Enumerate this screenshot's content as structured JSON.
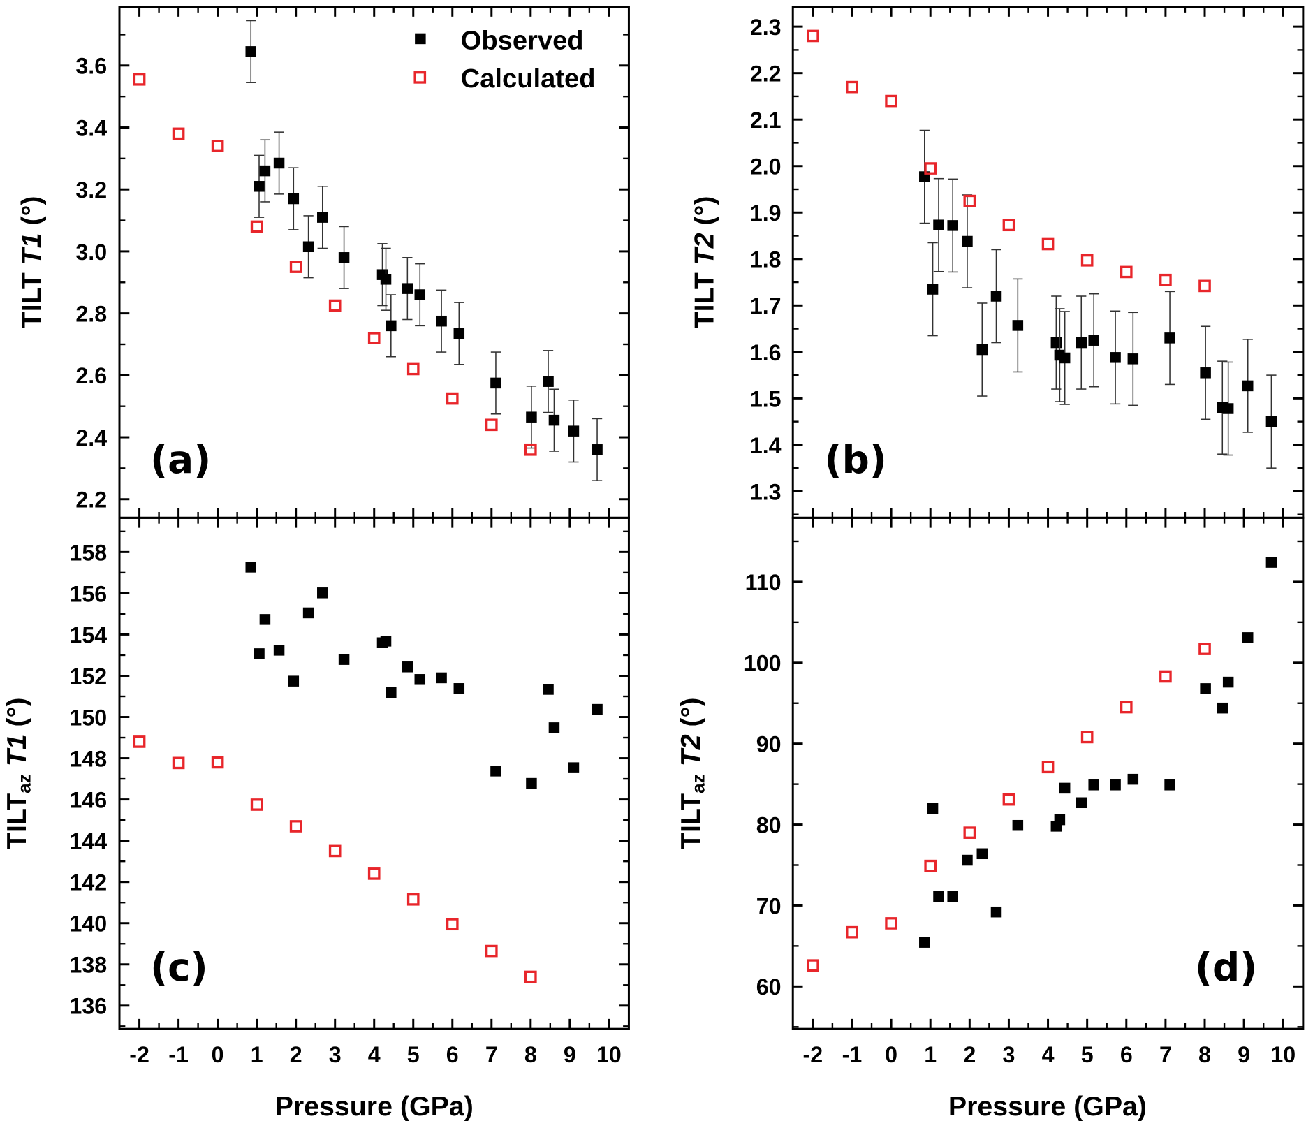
{
  "colors": {
    "observed": "#000000",
    "calculated": "#e8262b",
    "axis": "#000000"
  },
  "legend": {
    "placement": "top-right",
    "entries": [
      "Observed",
      "Calculated"
    ]
  },
  "shared_xlabel": "Pressure (GPa)",
  "chart_data": [
    {
      "type": "scatter",
      "panel": "(a)",
      "ylabel": {
        "prefix": "TILT ",
        "sub": "",
        "var": "T1",
        "unit": " (°)"
      },
      "xlim": [
        -2.51,
        10.51
      ],
      "ylim": [
        2.14,
        3.79
      ],
      "xticks": [
        -2,
        -1,
        0,
        1,
        2,
        3,
        4,
        5,
        6,
        7,
        8,
        9,
        10
      ],
      "yticks": [
        "2.2",
        "2.4",
        "2.6",
        "2.8",
        "3.0",
        "3.2",
        "3.4",
        "3.6"
      ],
      "show_xticklabels": false,
      "show_legend": true,
      "series": [
        {
          "name": "Observed",
          "marker": "filled-square",
          "x": [
            0.85,
            1.06,
            1.21,
            1.57,
            1.94,
            2.32,
            2.68,
            3.23,
            4.21,
            4.3,
            4.43,
            4.85,
            5.17,
            5.72,
            6.17,
            7.11,
            8.02,
            8.45,
            8.6,
            9.1,
            9.7
          ],
          "y": [
            3.645,
            3.21,
            3.26,
            3.285,
            3.17,
            3.015,
            3.11,
            2.98,
            2.925,
            2.91,
            2.76,
            2.88,
            2.86,
            2.775,
            2.735,
            2.575,
            2.465,
            2.58,
            2.455,
            2.42,
            2.36
          ],
          "yerr": 0.1
        },
        {
          "name": "Calculated",
          "marker": "open-square",
          "x": [
            -2,
            -1,
            0,
            1,
            2,
            3,
            4,
            5,
            6,
            7,
            8
          ],
          "y": [
            3.555,
            3.38,
            3.34,
            3.08,
            2.95,
            2.825,
            2.72,
            2.62,
            2.525,
            2.44,
            2.36
          ]
        }
      ]
    },
    {
      "type": "scatter",
      "panel": "(b)",
      "ylabel": {
        "prefix": "TILT ",
        "sub": "",
        "var": "T2",
        "unit": " (°)"
      },
      "xlim": [
        -2.51,
        10.51
      ],
      "ylim": [
        1.243,
        2.343
      ],
      "xticks": [
        -2,
        -1,
        0,
        1,
        2,
        3,
        4,
        5,
        6,
        7,
        8,
        9,
        10
      ],
      "yticks": [
        "1.3",
        "1.4",
        "1.5",
        "1.6",
        "1.7",
        "1.8",
        "1.9",
        "2.0",
        "2.1",
        "2.2",
        "2.3"
      ],
      "show_xticklabels": false,
      "show_legend": false,
      "series": [
        {
          "name": "Observed",
          "marker": "filled-square",
          "x": [
            0.85,
            1.06,
            1.21,
            1.57,
            1.94,
            2.32,
            2.68,
            3.23,
            4.21,
            4.3,
            4.43,
            4.85,
            5.17,
            5.72,
            6.17,
            7.11,
            8.02,
            8.45,
            8.6,
            9.1,
            9.7
          ],
          "y": [
            1.977,
            1.735,
            1.873,
            1.872,
            1.838,
            1.605,
            1.72,
            1.657,
            1.62,
            1.593,
            1.587,
            1.62,
            1.625,
            1.588,
            1.585,
            1.63,
            1.555,
            1.48,
            1.478,
            1.527,
            1.45
          ],
          "yerr": 0.1
        },
        {
          "name": "Calculated",
          "marker": "open-square",
          "x": [
            -2,
            -1,
            0,
            1,
            2,
            3,
            4,
            5,
            6,
            7,
            8
          ],
          "y": [
            2.28,
            2.17,
            2.14,
            1.995,
            1.925,
            1.873,
            1.832,
            1.797,
            1.772,
            1.755,
            1.742
          ]
        }
      ]
    },
    {
      "type": "scatter",
      "panel": "(c)",
      "ylabel": {
        "prefix": "TILT",
        "sub": "az",
        "var": " T1",
        "unit": " (°)"
      },
      "xlim": [
        -2.51,
        10.51
      ],
      "ylim": [
        134.87,
        159.66
      ],
      "xticks": [
        -2,
        -1,
        0,
        1,
        2,
        3,
        4,
        5,
        6,
        7,
        8,
        9,
        10
      ],
      "yticks": [
        "136",
        "138",
        "140",
        "142",
        "144",
        "146",
        "148",
        "150",
        "152",
        "154",
        "156",
        "158"
      ],
      "show_xticklabels": true,
      "show_legend": false,
      "series": [
        {
          "name": "Observed",
          "marker": "filled-square",
          "x": [
            0.85,
            1.06,
            1.21,
            1.57,
            1.94,
            2.32,
            2.68,
            3.23,
            4.21,
            4.3,
            4.43,
            4.85,
            5.17,
            5.72,
            6.17,
            7.11,
            8.02,
            8.45,
            8.6,
            9.1,
            9.7
          ],
          "y": [
            157.27,
            153.07,
            154.73,
            153.24,
            151.74,
            155.05,
            156.02,
            152.79,
            153.6,
            153.68,
            151.18,
            152.43,
            151.82,
            151.9,
            151.38,
            147.38,
            146.78,
            151.34,
            149.48,
            147.54,
            150.37
          ]
        },
        {
          "name": "Calculated",
          "marker": "open-square",
          "x": [
            -2,
            -1,
            0,
            1,
            2,
            3,
            4,
            5,
            6,
            7,
            8
          ],
          "y": [
            148.8,
            147.77,
            147.8,
            145.75,
            144.7,
            143.5,
            142.4,
            141.15,
            139.95,
            138.65,
            137.4
          ]
        }
      ]
    },
    {
      "type": "scatter",
      "panel": "(d)",
      "ylabel": {
        "prefix": "TILT",
        "sub": "az",
        "var": " T2",
        "unit": " (°)"
      },
      "xlim": [
        -2.51,
        10.51
      ],
      "ylim": [
        54.75,
        117.9
      ],
      "xticks": [
        -2,
        -1,
        0,
        1,
        2,
        3,
        4,
        5,
        6,
        7,
        8,
        9,
        10
      ],
      "yticks": [
        "60",
        "70",
        "80",
        "90",
        "100",
        "110"
      ],
      "show_xticklabels": true,
      "show_legend": false,
      "series": [
        {
          "name": "Observed",
          "marker": "filled-square",
          "x": [
            0.85,
            1.06,
            1.21,
            1.57,
            1.94,
            2.32,
            2.68,
            3.23,
            4.21,
            4.3,
            4.43,
            4.85,
            5.17,
            5.72,
            6.17,
            7.11,
            8.02,
            8.45,
            8.6,
            9.1,
            9.7
          ],
          "y": [
            65.45,
            82.0,
            71.1,
            71.1,
            75.6,
            76.4,
            69.2,
            79.9,
            79.8,
            80.6,
            84.5,
            82.7,
            84.9,
            84.9,
            85.6,
            84.9,
            96.8,
            94.4,
            97.6,
            103.1,
            112.4
          ]
        },
        {
          "name": "Calculated",
          "marker": "open-square",
          "x": [
            -2,
            -1,
            0,
            1,
            2,
            3,
            4,
            5,
            6,
            7,
            8
          ],
          "y": [
            62.6,
            66.7,
            67.8,
            74.9,
            79.0,
            83.1,
            87.1,
            90.8,
            94.5,
            98.3,
            101.7
          ]
        }
      ]
    }
  ]
}
